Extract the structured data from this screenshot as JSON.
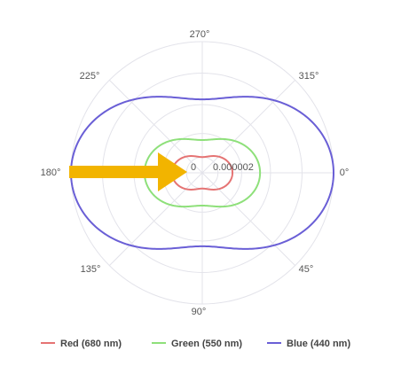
{
  "chart_data": {
    "type": "polar-line",
    "angle_ticks": [
      "270°",
      "315°",
      "0°",
      "45°",
      "90°",
      "135°",
      "180°",
      "225°"
    ],
    "radial_ticks": [
      "0",
      "0.000002"
    ],
    "grid": true,
    "legend_position": "bottom",
    "series": [
      {
        "name": "Red (680 nm)",
        "color": "#e57373",
        "shape": "dipole",
        "a": 0.23,
        "b": 0.12
      },
      {
        "name": "Green (550 nm)",
        "color": "#8ee07a",
        "shape": "dipole",
        "a": 0.44,
        "b": 0.25
      },
      {
        "name": "Blue (440 nm)",
        "color": "#6a5fd6",
        "shape": "dipole",
        "a": 1.0,
        "b": 0.56
      }
    ],
    "annotation": {
      "type": "arrow",
      "color": "#f2b400"
    }
  }
}
